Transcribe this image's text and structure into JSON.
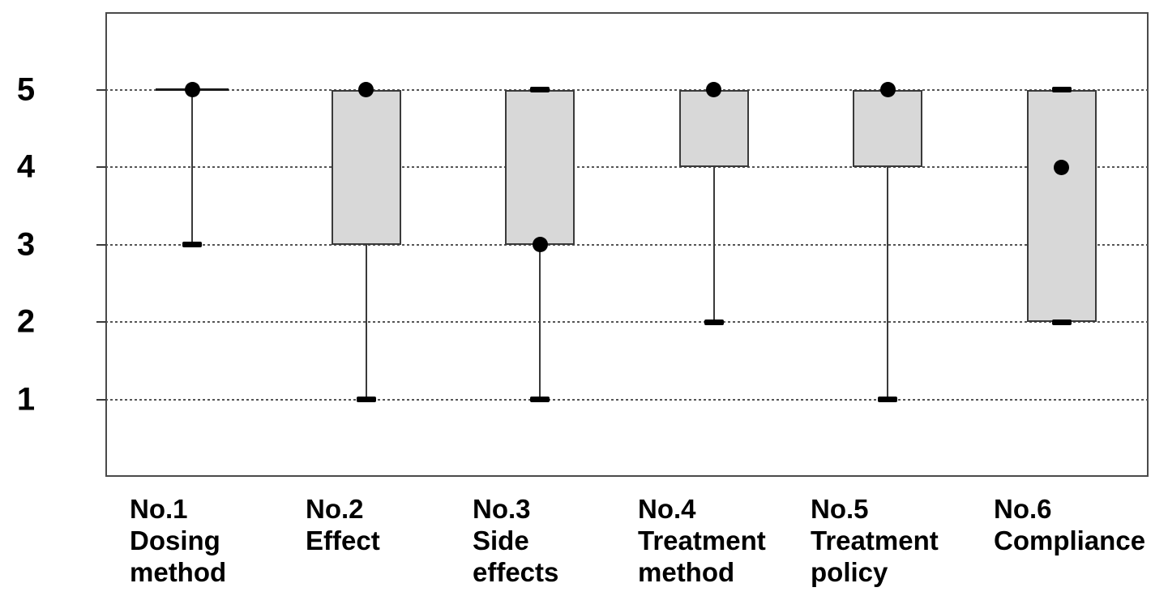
{
  "chart_data": {
    "type": "boxplot",
    "title": "",
    "xlabel": "",
    "ylabel": "",
    "ylim": [
      0,
      6
    ],
    "yticks": [
      5,
      4,
      3,
      2,
      1
    ],
    "grid": "horizontal-dashed",
    "legend": "none",
    "categories": [
      "No.1 Dosing method",
      "No.2 Effect",
      "No.3 Side effects",
      "No.4 Treatment method",
      "No.5 Treatment policy",
      "No.6 Compliance"
    ],
    "series": [
      {
        "name": "No.1 Dosing method",
        "label_lines": [
          "No.1",
          "Dosing",
          "method"
        ],
        "box_low": 5,
        "box_high": 5,
        "median_dot": 5,
        "whisker_min": 3,
        "caps": [
          3
        ]
      },
      {
        "name": "No.2 Effect",
        "label_lines": [
          "No.2",
          "Effect"
        ],
        "box_low": 3,
        "box_high": 5,
        "median_dot": 5,
        "whisker_min": 1,
        "caps": [
          1
        ]
      },
      {
        "name": "No.3 Side effects",
        "label_lines": [
          "No.3",
          "Side",
          "effects"
        ],
        "box_low": 3,
        "box_high": 5,
        "median_dot": 3,
        "whisker_min": 1,
        "caps": [
          5,
          1
        ]
      },
      {
        "name": "No.4 Treatment method",
        "label_lines": [
          "No.4",
          "Treatment",
          "method"
        ],
        "box_low": 4,
        "box_high": 5,
        "median_dot": 5,
        "whisker_min": 2,
        "caps": [
          2
        ]
      },
      {
        "name": "No.5 Treatment policy",
        "label_lines": [
          "No.5",
          "Treatment",
          "policy"
        ],
        "box_low": 4,
        "box_high": 5,
        "median_dot": 5,
        "whisker_min": 1,
        "caps": [
          1
        ]
      },
      {
        "name": "No.6 Compliance",
        "label_lines": [
          "No.6",
          "Compliance"
        ],
        "box_low": 2,
        "box_high": 5,
        "median_dot": 4,
        "whisker_min": null,
        "caps": [
          5,
          2
        ]
      }
    ],
    "colors": {
      "box_fill": "#d8d8d8",
      "box_border": "#3a3a3a",
      "dot": "#000000",
      "grid": "#555555",
      "frame": "#4a4a4a",
      "text": "#000000",
      "background": "#ffffff"
    }
  }
}
